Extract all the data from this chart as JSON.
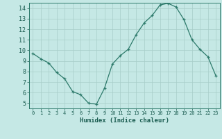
{
  "title": "",
  "xlabel": "Humidex (Indice chaleur)",
  "x": [
    0,
    1,
    2,
    3,
    4,
    5,
    6,
    7,
    8,
    9,
    10,
    11,
    12,
    13,
    14,
    15,
    16,
    17,
    18,
    19,
    20,
    21,
    22,
    23
  ],
  "y": [
    9.7,
    9.2,
    8.8,
    7.9,
    7.3,
    6.1,
    5.8,
    5.0,
    4.9,
    6.4,
    8.7,
    9.5,
    10.1,
    11.5,
    12.6,
    13.3,
    14.3,
    14.45,
    14.1,
    12.9,
    11.0,
    10.1,
    9.4,
    7.6
  ],
  "line_color": "#2d7a6b",
  "marker": "+",
  "bg_color": "#c5e8e5",
  "grid_color": "#a8cdc9",
  "axis_color": "#2d7a6b",
  "text_color": "#1a5c50",
  "xlim": [
    -0.5,
    23.5
  ],
  "ylim": [
    4.5,
    14.5
  ],
  "xticks": [
    0,
    1,
    2,
    3,
    4,
    5,
    6,
    7,
    8,
    9,
    10,
    11,
    12,
    13,
    14,
    15,
    16,
    17,
    18,
    19,
    20,
    21,
    22,
    23
  ],
  "yticks": [
    5,
    6,
    7,
    8,
    9,
    10,
    11,
    12,
    13,
    14
  ]
}
